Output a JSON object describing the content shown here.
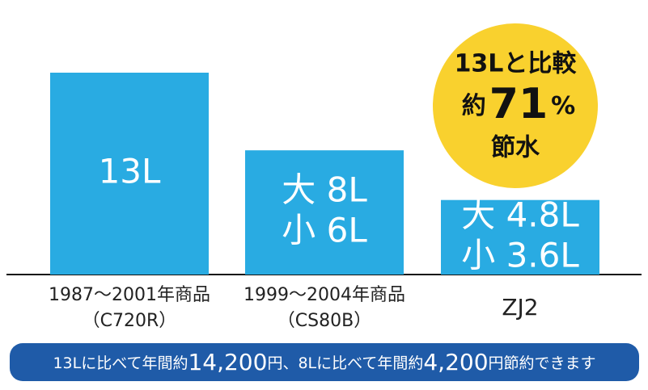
{
  "chart_data": {
    "type": "bar",
    "categories": [
      "1987～2001年商品",
      "1999～2004年商品",
      "ZJ2"
    ],
    "category_notes": [
      "（C720R）",
      "（CS80B）"
    ],
    "values": [
      13,
      8,
      4.8
    ],
    "bar_labels": [
      [
        "13L"
      ],
      [
        "大 8L",
        "小 6L"
      ],
      [
        "大 4.8L",
        "小 3.6L"
      ]
    ],
    "color": "#29abe2",
    "ylim": [
      0,
      13
    ],
    "badge": {
      "lines": [
        "13Lと比較",
        "約",
        "71",
        "%",
        "節水"
      ],
      "color": "#f9d12e"
    },
    "footer": {
      "parts": [
        "13Lに比べて年間約",
        "14,200",
        "円、8Lに比べて年間約",
        "4,200",
        "円節約できます"
      ],
      "color": "#1f5ba8"
    }
  }
}
